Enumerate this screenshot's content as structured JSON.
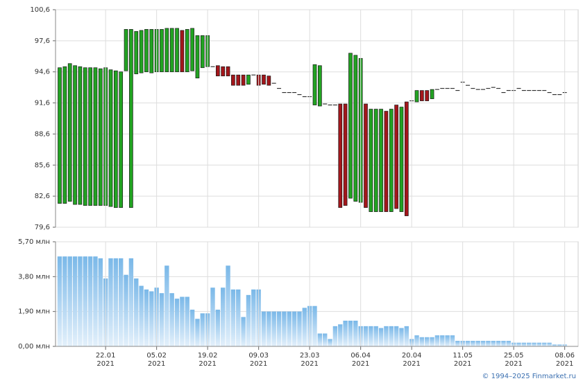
{
  "chart_data": [
    {
      "type": "candlestick",
      "open": [
        81.9,
        81.9,
        82.1,
        81.8,
        81.8,
        81.7,
        81.7,
        81.7,
        81.7,
        81.7,
        81.6,
        81.5,
        81.5,
        94.7,
        81.5,
        94.4,
        94.5,
        94.6,
        94.5,
        94.6,
        94.6,
        94.6,
        94.6,
        94.6,
        98.6,
        94.6,
        94.7,
        94.0,
        95.0,
        95.1,
        95.1,
        95.2,
        95.1,
        95.1,
        94.3,
        94.3,
        94.3,
        93.4,
        94.3,
        94.3,
        94.3,
        94.2,
        93.5,
        93.0,
        92.6,
        92.6,
        92.6,
        92.4,
        92.2,
        92.2,
        91.4,
        91.3,
        91.5,
        91.4,
        91.4,
        91.5,
        91.5,
        82.4,
        82.1,
        82.0,
        91.5,
        81.1,
        81.1,
        81.1,
        90.8,
        81.1,
        91.4,
        81.1,
        91.7,
        91.8,
        91.7,
        92.8,
        92.8,
        92.0,
        92.9,
        93.0,
        93.0,
        93.0,
        92.8,
        93.6,
        93.3,
        93.0,
        92.9,
        92.9,
        93.0,
        93.1,
        93.0,
        92.6,
        92.8,
        92.8,
        93.0,
        92.8,
        92.8,
        92.8,
        92.8,
        92.8,
        92.6,
        92.4,
        92.4,
        92.6
      ],
      "close": [
        95.0,
        95.1,
        95.4,
        95.2,
        95.1,
        95.0,
        95.0,
        95.0,
        94.9,
        95.0,
        94.8,
        94.7,
        94.6,
        98.7,
        98.7,
        98.5,
        98.6,
        98.7,
        98.7,
        98.7,
        98.7,
        98.8,
        98.8,
        98.8,
        94.6,
        98.7,
        98.8,
        98.1,
        98.1,
        98.1,
        95.1,
        94.2,
        94.2,
        94.2,
        93.3,
        93.3,
        93.3,
        94.3,
        94.3,
        93.3,
        93.4,
        93.3,
        93.5,
        93.0,
        92.6,
        92.6,
        92.6,
        92.4,
        92.2,
        92.2,
        95.3,
        95.2,
        91.5,
        91.4,
        91.4,
        81.5,
        81.7,
        96.4,
        96.2,
        95.9,
        81.5,
        91.0,
        91.0,
        91.0,
        81.1,
        91.0,
        81.4,
        91.2,
        80.7,
        91.8,
        92.8,
        91.8,
        91.8,
        92.9,
        92.9,
        93.0,
        93.0,
        93.0,
        92.8,
        93.6,
        93.3,
        93.0,
        92.9,
        92.9,
        93.0,
        93.1,
        93.0,
        92.6,
        92.8,
        92.8,
        93.0,
        92.8,
        92.8,
        92.8,
        92.8,
        92.8,
        92.6,
        92.4,
        92.4,
        92.6
      ],
      "up_color": "#22a322",
      "down_color": "#a3161b",
      "ylim": [
        79.6,
        100.6
      ],
      "yticks": [
        {
          "value": 79.6,
          "label": "79,6"
        },
        {
          "value": 82.6,
          "label": "82,6"
        },
        {
          "value": 85.6,
          "label": "85,6"
        },
        {
          "value": 88.6,
          "label": "88,6"
        },
        {
          "value": 91.6,
          "label": "91,6"
        },
        {
          "value": 94.6,
          "label": "94,6"
        },
        {
          "value": 97.6,
          "label": "97,6"
        },
        {
          "value": 100.6,
          "label": "100,6"
        }
      ],
      "grid": true
    },
    {
      "type": "bar",
      "categories": [
        null,
        null,
        null,
        null,
        null,
        null,
        null,
        null,
        null,
        "22.01\n2021",
        null,
        null,
        null,
        null,
        null,
        null,
        null,
        null,
        null,
        "05.02\n2021",
        null,
        null,
        null,
        null,
        null,
        null,
        null,
        null,
        null,
        "19.02\n2021",
        null,
        null,
        null,
        null,
        null,
        null,
        null,
        null,
        null,
        "09.03\n2021",
        null,
        null,
        null,
        null,
        null,
        null,
        null,
        null,
        null,
        "23.03\n2021",
        null,
        null,
        null,
        null,
        null,
        null,
        null,
        null,
        null,
        "06.04\n2021",
        null,
        null,
        null,
        null,
        null,
        null,
        null,
        null,
        null,
        "20.04\n2021",
        null,
        null,
        null,
        null,
        null,
        null,
        null,
        null,
        null,
        "11.05\n2021",
        null,
        null,
        null,
        null,
        null,
        null,
        null,
        null,
        null,
        "25.05\n2021",
        null,
        null,
        null,
        null,
        null,
        null,
        null,
        null,
        null,
        "08.06\n2021"
      ],
      "values": [
        4.9,
        4.9,
        4.9,
        4.9,
        4.9,
        4.9,
        4.9,
        4.9,
        4.8,
        3.7,
        4.8,
        4.8,
        4.8,
        3.9,
        4.8,
        3.7,
        3.3,
        3.1,
        3.0,
        3.2,
        2.9,
        4.4,
        2.9,
        2.6,
        2.7,
        2.7,
        2.0,
        1.5,
        1.8,
        1.8,
        3.2,
        2.0,
        3.2,
        4.4,
        3.1,
        3.1,
        1.6,
        2.8,
        3.1,
        3.1,
        1.9,
        1.9,
        1.9,
        1.9,
        1.9,
        1.9,
        1.9,
        1.9,
        2.1,
        2.2,
        2.2,
        0.7,
        0.7,
        0.4,
        1.1,
        1.2,
        1.4,
        1.4,
        1.4,
        1.1,
        1.1,
        1.1,
        1.1,
        1.0,
        1.1,
        1.1,
        1.1,
        1.0,
        1.1,
        0.4,
        0.6,
        0.5,
        0.5,
        0.5,
        0.6,
        0.6,
        0.6,
        0.6,
        0.3,
        0.3,
        0.3,
        0.3,
        0.3,
        0.3,
        0.3,
        0.3,
        0.3,
        0.3,
        0.3,
        0.2,
        0.2,
        0.2,
        0.2,
        0.2,
        0.2,
        0.2,
        0.2,
        0.1,
        0.1,
        0.1
      ],
      "color": "#7ab8e8",
      "ylim": [
        0,
        5.7
      ],
      "yticks": [
        {
          "value": 0,
          "label": "0,00 млн"
        },
        {
          "value": 1.9,
          "label": "1,90 млн"
        },
        {
          "value": 3.8,
          "label": "3,80 млн"
        },
        {
          "value": 5.7,
          "label": "5,70 млн"
        }
      ],
      "grid": true
    }
  ],
  "footer": "© 1994–2025 Finmarket.ru"
}
